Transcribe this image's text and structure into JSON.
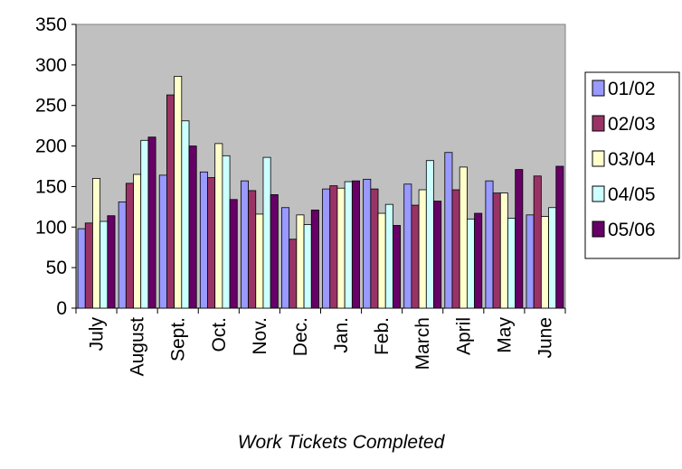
{
  "chart_data": {
    "type": "bar",
    "title": "",
    "xlabel": "",
    "ylabel": "",
    "ylim": [
      0,
      350
    ],
    "yticks": [
      0,
      50,
      100,
      150,
      200,
      250,
      300,
      350
    ],
    "grid": false,
    "legend_position": "right",
    "plot_background": "#C0C0C0",
    "categories": [
      "July",
      "August",
      "Sept.",
      "Oct.",
      "Nov.",
      "Dec.",
      "Jan.",
      "Feb.",
      "March",
      "April",
      "May",
      "June"
    ],
    "series": [
      {
        "name": "01/02",
        "color": "#9999FF",
        "values": [
          98,
          131,
          164,
          168,
          157,
          124,
          147,
          159,
          153,
          192,
          157,
          115
        ]
      },
      {
        "name": "02/03",
        "color": "#993366",
        "values": [
          105,
          154,
          263,
          161,
          145,
          85,
          151,
          147,
          127,
          146,
          142,
          163
        ]
      },
      {
        "name": "03/04",
        "color": "#FFFFCC",
        "values": [
          160,
          165,
          286,
          203,
          116,
          115,
          148,
          117,
          146,
          174,
          142,
          113
        ]
      },
      {
        "name": "04/05",
        "color": "#CCFFFF",
        "values": [
          107,
          207,
          231,
          188,
          186,
          103,
          156,
          128,
          182,
          110,
          111,
          124
        ]
      },
      {
        "name": "05/06",
        "color": "#660066",
        "values": [
          114,
          211,
          200,
          134,
          140,
          121,
          157,
          102,
          132,
          117,
          171,
          175
        ]
      }
    ]
  },
  "caption": "Work Tickets Completed"
}
